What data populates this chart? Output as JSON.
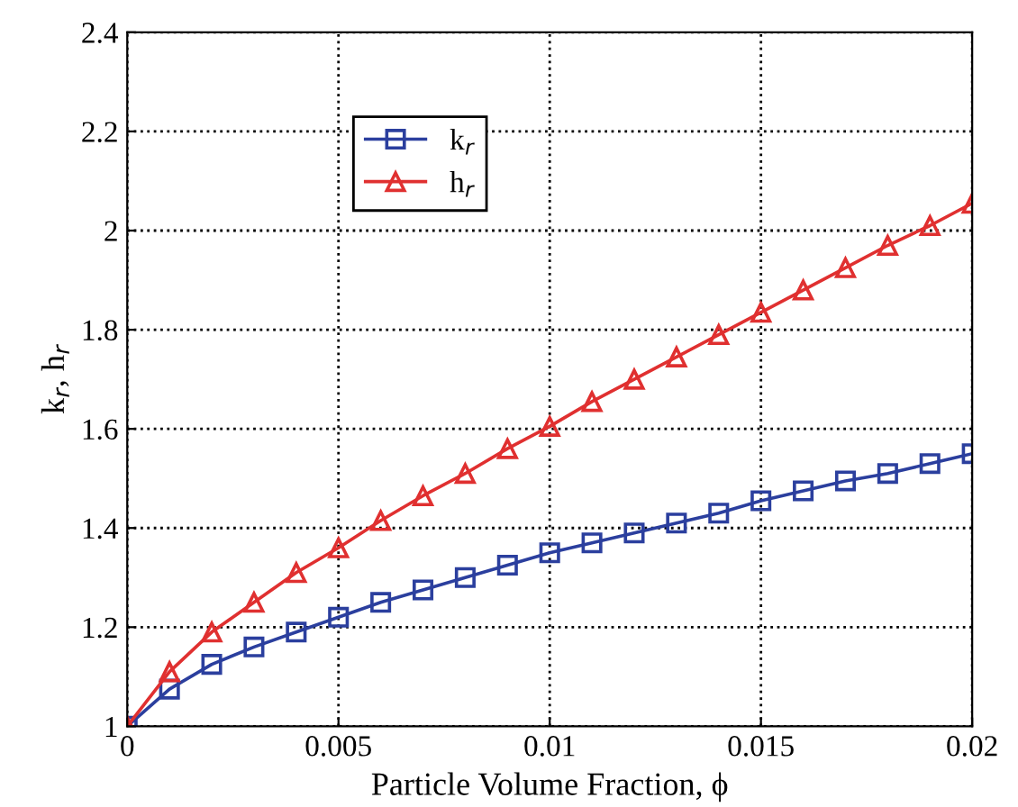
{
  "chart_data": {
    "type": "line",
    "xlabel": "Particle Volume Fraction, ϕ",
    "ylabel": "k$_{r}$, h$_{r}$",
    "x": [
      0,
      0.001,
      0.002,
      0.003,
      0.004,
      0.005,
      0.006,
      0.007,
      0.008,
      0.009,
      0.01,
      0.011,
      0.012,
      0.013,
      0.014,
      0.015,
      0.016,
      0.017,
      0.018,
      0.019,
      0.02
    ],
    "series": [
      {
        "name": "k$_{r}$",
        "color": "#2b3f9e",
        "marker": "square",
        "values": [
          1.0,
          1.075,
          1.125,
          1.16,
          1.19,
          1.22,
          1.25,
          1.275,
          1.3,
          1.325,
          1.35,
          1.37,
          1.39,
          1.41,
          1.43,
          1.455,
          1.475,
          1.495,
          1.51,
          1.53,
          1.55
        ]
      },
      {
        "name": "h$_{r}$",
        "color": "#e03030",
        "marker": "triangle",
        "values": [
          1.0,
          1.11,
          1.19,
          1.25,
          1.31,
          1.36,
          1.415,
          1.465,
          1.51,
          1.56,
          1.605,
          1.655,
          1.7,
          1.745,
          1.79,
          1.835,
          1.88,
          1.925,
          1.97,
          2.01,
          2.055
        ]
      }
    ],
    "xlim": [
      0,
      0.02
    ],
    "xticks": [
      0,
      0.005,
      0.01,
      0.015,
      0.02
    ],
    "ylim": [
      1,
      2.4
    ],
    "yticks": [
      1,
      1.2,
      1.4,
      1.6,
      1.8,
      2,
      2.2,
      2.4
    ],
    "grid": true,
    "legend": "top left",
    "line_style": "solid"
  }
}
